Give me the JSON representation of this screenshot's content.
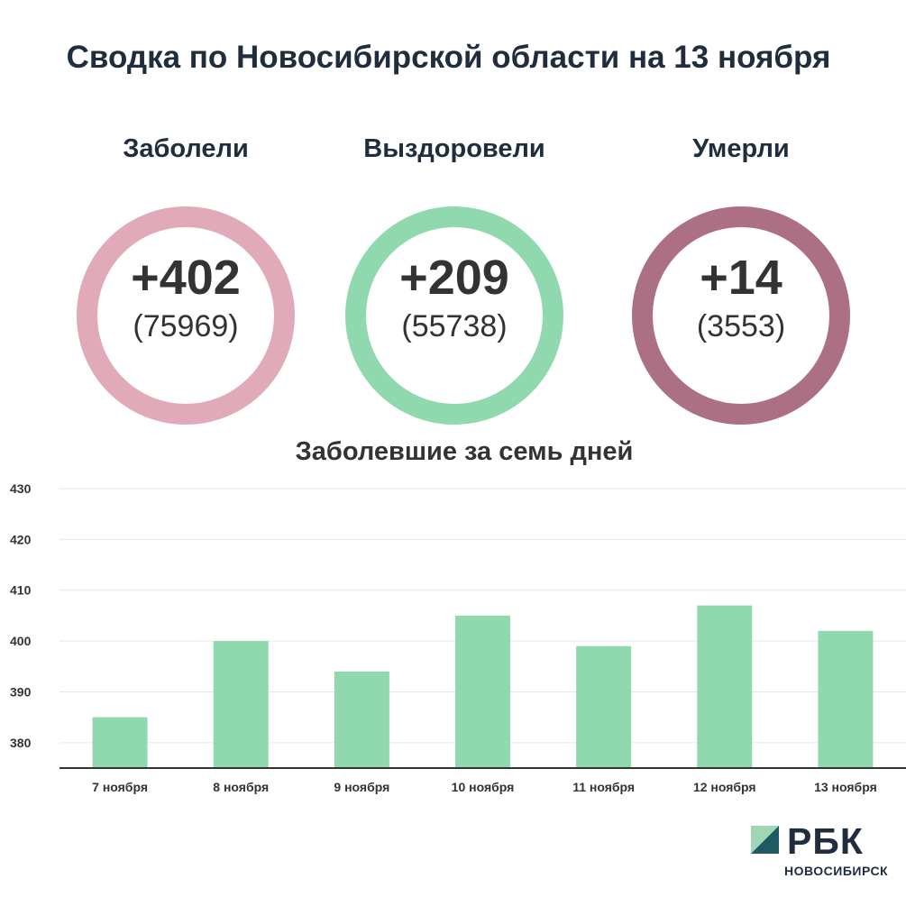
{
  "title": "Сводка по Новосибирской области на 13 ноября",
  "stats": [
    {
      "label": "Заболели",
      "value": "+402",
      "total": "(75969)",
      "color": "#e0aab9"
    },
    {
      "label": "Выздоровели",
      "value": "+209",
      "total": "(55738)",
      "color": "#90d8ad"
    },
    {
      "label": "Умерли",
      "value": "+14",
      "total": "(3553)",
      "color": "#ad6f83"
    }
  ],
  "chart_data": {
    "type": "bar",
    "title": "Заболевшие за семь дней",
    "categories": [
      "7 ноября",
      "8 ноября",
      "9 ноября",
      "10 ноября",
      "11 ноября",
      "12 ноября",
      "13 ноября"
    ],
    "values": [
      385,
      400,
      394,
      405,
      399,
      407,
      402
    ],
    "ylim": [
      375,
      430
    ],
    "yticks": [
      380,
      390,
      400,
      410,
      420,
      430
    ],
    "grid": true,
    "bar_color": "#90d8ad"
  },
  "logo": {
    "text": "РБК",
    "sub": "НОВОСИБИРСК"
  }
}
